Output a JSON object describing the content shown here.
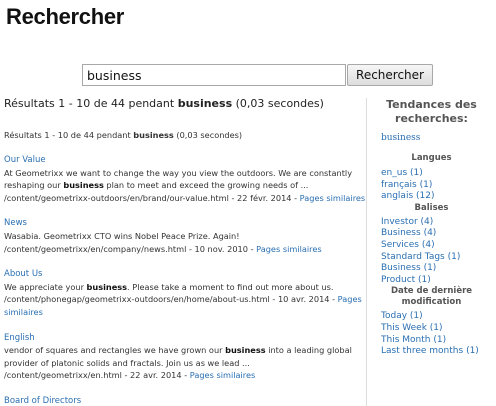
{
  "page": {
    "title": "Rechercher"
  },
  "search": {
    "value": "business",
    "button_label": "Rechercher"
  },
  "summary": {
    "prefix": "Résultats 1 - 10 de 44 pendant ",
    "term": "business",
    "suffix": " (0,03 secondes)"
  },
  "results": [
    {
      "title": "Our Value",
      "snippet_before": "At Geometrixx we want to change the way you view the outdoors. We are constantly reshaping our ",
      "snippet_term": "business",
      "snippet_after": " plan to meet and exceed the growing needs of ...",
      "path": "/content/geometrixx-outdoors/en/brand/our-value.html - 22 févr. 2014 - ",
      "similar_label": "Pages similaires"
    },
    {
      "title": "News",
      "snippet_before": "Wasabia. Geometrixx CTO wins Nobel Peace Prize. Again!",
      "snippet_term": "",
      "snippet_after": "",
      "path": "/content/geometrixx/en/company/news.html - 10 nov. 2010 - ",
      "similar_label": "Pages similaires"
    },
    {
      "title": "About Us",
      "snippet_before": "We appreciate your ",
      "snippet_term": "business",
      "snippet_after": ". Please take a moment to find out more about us.",
      "path": "/content/phonegap/geometrixx-outdoors/en/home/about-us.html - 10 avr. 2014 - ",
      "similar_label": "Pages similaires"
    },
    {
      "title": "English",
      "snippet_before": "vendor of squares and rectangles we have grown our ",
      "snippet_term": "business",
      "snippet_after": " into a leading global provider of platonic solids and fractals. Join us as we lead ...",
      "path": "/content/geometrixx/en.html - 22 avr. 2014 - ",
      "similar_label": "Pages similaires"
    },
    {
      "title": "Board of Directors",
      "snippet_before": "",
      "snippet_term": "",
      "snippet_after": "",
      "path": "",
      "similar_label": ""
    }
  ],
  "sidebar": {
    "trends_title": "Tendances des recherches:",
    "trend_items": [
      "business"
    ],
    "languages_title": "Langues",
    "languages": [
      {
        "label": "en_us",
        "count": "(1)"
      },
      {
        "label": "français",
        "count": "(1)"
      },
      {
        "label": "anglais",
        "count": "(12)"
      }
    ],
    "tags_title": "Balises",
    "tags": [
      {
        "label": "Investor",
        "count": "(4)"
      },
      {
        "label": "Business",
        "count": "(4)"
      },
      {
        "label": "Services",
        "count": "(4)"
      },
      {
        "label": "Standard Tags",
        "count": "(1)"
      },
      {
        "label": "Business",
        "count": "(1)"
      },
      {
        "label": "Product",
        "count": "(1)"
      }
    ],
    "modified_title": "Date de dernière modification",
    "modified": [
      {
        "label": "Today",
        "count": "(1)"
      },
      {
        "label": "This Week",
        "count": "(1)"
      },
      {
        "label": "This Month",
        "count": "(1)"
      },
      {
        "label": "Last three months",
        "count": "(1)"
      }
    ]
  },
  "colors": {
    "link": "#2a6fb2",
    "text": "#333333",
    "heading": "#555555"
  }
}
